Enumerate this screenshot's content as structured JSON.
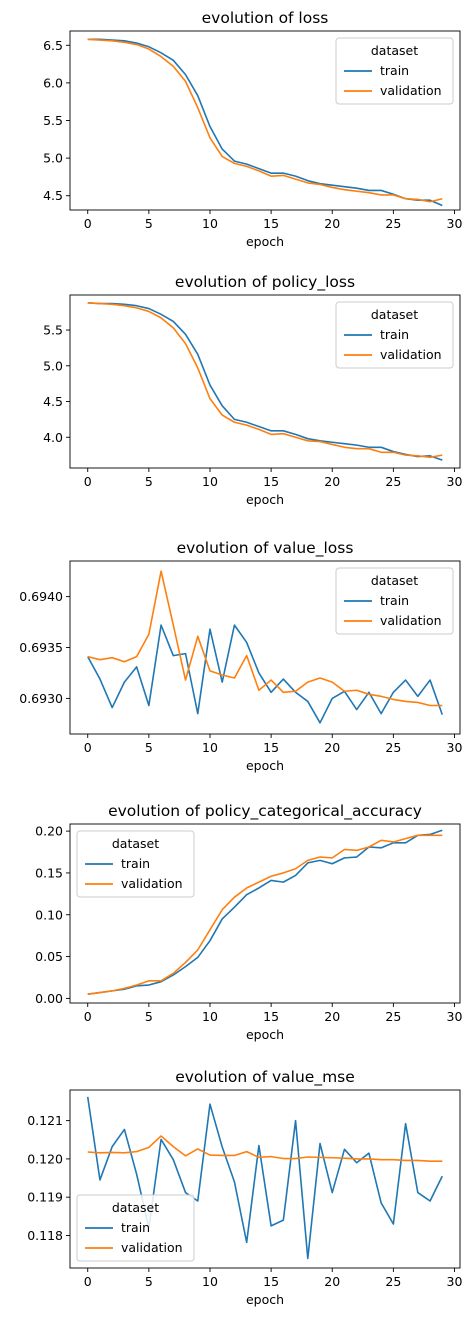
{
  "colors": {
    "train": "#1f77b4",
    "validation": "#ff7f0e"
  },
  "chart_data": [
    {
      "type": "line",
      "title": "evolution of loss",
      "xlabel": "epoch",
      "ylabel": "",
      "xlim": [
        -1.45,
        30.45
      ],
      "ylim": [
        4.31,
        6.69
      ],
      "xticks": [
        0,
        5,
        10,
        15,
        20,
        25,
        30
      ],
      "yticks": [
        4.5,
        5.0,
        5.5,
        6.0,
        6.5
      ],
      "yticklabels": [
        "4.5",
        "5.0",
        "5.5",
        "6.0",
        "6.5"
      ],
      "legend": {
        "title": "dataset",
        "position": "top-right"
      },
      "x": [
        0,
        1,
        2,
        3,
        4,
        5,
        6,
        7,
        8,
        9,
        10,
        11,
        12,
        13,
        14,
        15,
        16,
        17,
        18,
        19,
        20,
        21,
        22,
        23,
        24,
        25,
        26,
        27,
        28,
        29
      ],
      "series": [
        {
          "name": "train",
          "values": [
            6.58,
            6.58,
            6.57,
            6.56,
            6.53,
            6.48,
            6.4,
            6.3,
            6.11,
            5.83,
            5.42,
            5.12,
            4.96,
            4.92,
            4.86,
            4.8,
            4.8,
            4.76,
            4.7,
            4.66,
            4.64,
            4.62,
            4.6,
            4.57,
            4.57,
            4.52,
            4.46,
            4.44,
            4.44,
            4.37
          ]
        },
        {
          "name": "validation",
          "values": [
            6.58,
            6.57,
            6.56,
            6.54,
            6.51,
            6.45,
            6.35,
            6.22,
            6.02,
            5.67,
            5.27,
            5.02,
            4.93,
            4.89,
            4.83,
            4.76,
            4.77,
            4.72,
            4.67,
            4.65,
            4.61,
            4.58,
            4.56,
            4.54,
            4.51,
            4.51,
            4.46,
            4.45,
            4.42,
            4.46
          ]
        }
      ]
    },
    {
      "type": "line",
      "title": "evolution of policy_loss",
      "xlabel": "epoch",
      "ylabel": "",
      "xlim": [
        -1.45,
        30.45
      ],
      "ylim": [
        3.57,
        5.99
      ],
      "xticks": [
        0,
        5,
        10,
        15,
        20,
        25,
        30
      ],
      "yticks": [
        4.0,
        4.5,
        5.0,
        5.5
      ],
      "yticklabels": [
        "4.0",
        "4.5",
        "5.0",
        "5.5"
      ],
      "legend": {
        "title": "dataset",
        "position": "top-right"
      },
      "x": [
        0,
        1,
        2,
        3,
        4,
        5,
        6,
        7,
        8,
        9,
        10,
        11,
        12,
        13,
        14,
        15,
        16,
        17,
        18,
        19,
        20,
        21,
        22,
        23,
        24,
        25,
        26,
        27,
        28,
        29
      ],
      "series": [
        {
          "name": "train",
          "values": [
            5.88,
            5.87,
            5.87,
            5.86,
            5.84,
            5.8,
            5.72,
            5.62,
            5.44,
            5.16,
            4.73,
            4.44,
            4.25,
            4.21,
            4.15,
            4.09,
            4.09,
            4.04,
            3.98,
            3.95,
            3.93,
            3.91,
            3.89,
            3.86,
            3.86,
            3.8,
            3.76,
            3.73,
            3.74,
            3.68
          ]
        },
        {
          "name": "validation",
          "values": [
            5.88,
            5.87,
            5.86,
            5.84,
            5.81,
            5.76,
            5.67,
            5.53,
            5.31,
            4.97,
            4.54,
            4.31,
            4.21,
            4.17,
            4.11,
            4.04,
            4.05,
            4.0,
            3.95,
            3.94,
            3.9,
            3.86,
            3.84,
            3.84,
            3.79,
            3.79,
            3.75,
            3.74,
            3.72,
            3.75
          ]
        }
      ]
    },
    {
      "type": "line",
      "title": "evolution of value_loss",
      "xlabel": "epoch",
      "ylabel": "",
      "xlim": [
        -1.45,
        30.45
      ],
      "ylim": [
        0.69265,
        0.69435
      ],
      "xticks": [
        0,
        5,
        10,
        15,
        20,
        25,
        30
      ],
      "yticks": [
        0.693,
        0.6935,
        0.694
      ],
      "yticklabels": [
        "0.6930",
        "0.6935",
        "0.6940"
      ],
      "legend": {
        "title": "dataset",
        "position": "top-right"
      },
      "x": [
        0,
        1,
        2,
        3,
        4,
        5,
        6,
        7,
        8,
        9,
        10,
        11,
        12,
        13,
        14,
        15,
        16,
        17,
        18,
        19,
        20,
        21,
        22,
        23,
        24,
        25,
        26,
        27,
        28,
        29
      ],
      "series": [
        {
          "name": "train",
          "values": [
            0.69341,
            0.69319,
            0.69291,
            0.69316,
            0.69331,
            0.69293,
            0.69372,
            0.69342,
            0.69344,
            0.69285,
            0.69368,
            0.69316,
            0.69372,
            0.69355,
            0.69325,
            0.69306,
            0.69319,
            0.69306,
            0.69297,
            0.69276,
            0.693,
            0.69307,
            0.69289,
            0.69306,
            0.69285,
            0.69306,
            0.69318,
            0.69302,
            0.69318,
            0.69284
          ]
        },
        {
          "name": "validation",
          "values": [
            0.69341,
            0.69338,
            0.6934,
            0.69336,
            0.69341,
            0.69363,
            0.69425,
            0.69372,
            0.69318,
            0.69361,
            0.69327,
            0.69323,
            0.6932,
            0.69342,
            0.69308,
            0.69318,
            0.69306,
            0.69307,
            0.69316,
            0.6932,
            0.69316,
            0.69307,
            0.69308,
            0.69304,
            0.69302,
            0.69299,
            0.69297,
            0.69296,
            0.69293,
            0.69293
          ]
        }
      ]
    },
    {
      "type": "line",
      "title": "evolution of policy_categorical_accuracy",
      "xlabel": "epoch",
      "ylabel": "",
      "xlim": [
        -1.45,
        30.45
      ],
      "ylim": [
        -0.0055,
        0.2085
      ],
      "xticks": [
        0,
        5,
        10,
        15,
        20,
        25,
        30
      ],
      "yticks": [
        0.0,
        0.05,
        0.1,
        0.15,
        0.2
      ],
      "yticklabels": [
        "0.00",
        "0.05",
        "0.10",
        "0.15",
        "0.20"
      ],
      "legend": {
        "title": "dataset",
        "position": "top-left"
      },
      "x": [
        0,
        1,
        2,
        3,
        4,
        5,
        6,
        7,
        8,
        9,
        10,
        11,
        12,
        13,
        14,
        15,
        16,
        17,
        18,
        19,
        20,
        21,
        22,
        23,
        24,
        25,
        26,
        27,
        28,
        29
      ],
      "series": [
        {
          "name": "train",
          "values": [
            0.005,
            0.007,
            0.009,
            0.011,
            0.015,
            0.016,
            0.02,
            0.028,
            0.038,
            0.049,
            0.069,
            0.095,
            0.109,
            0.124,
            0.132,
            0.141,
            0.139,
            0.147,
            0.162,
            0.165,
            0.161,
            0.168,
            0.169,
            0.181,
            0.18,
            0.186,
            0.186,
            0.195,
            0.196,
            0.201
          ]
        },
        {
          "name": "validation",
          "values": [
            0.005,
            0.007,
            0.009,
            0.012,
            0.016,
            0.021,
            0.021,
            0.03,
            0.043,
            0.058,
            0.082,
            0.106,
            0.121,
            0.132,
            0.139,
            0.146,
            0.15,
            0.155,
            0.165,
            0.169,
            0.168,
            0.178,
            0.177,
            0.181,
            0.189,
            0.187,
            0.191,
            0.195,
            0.195,
            0.195
          ]
        }
      ]
    },
    {
      "type": "line",
      "title": "evolution of value_mse",
      "xlabel": "epoch",
      "ylabel": "",
      "xlim": [
        -1.45,
        30.45
      ],
      "ylim": [
        0.11715,
        0.1218
      ],
      "xticks": [
        0,
        5,
        10,
        15,
        20,
        25,
        30
      ],
      "yticks": [
        0.118,
        0.119,
        0.12,
        0.121
      ],
      "yticklabels": [
        "0.118",
        "0.119",
        "0.120",
        "0.121"
      ],
      "legend": {
        "title": "dataset",
        "position": "bottom-left"
      },
      "x": [
        0,
        1,
        2,
        3,
        4,
        5,
        6,
        7,
        8,
        9,
        10,
        11,
        12,
        13,
        14,
        15,
        16,
        17,
        18,
        19,
        20,
        21,
        22,
        23,
        24,
        25,
        26,
        27,
        28,
        29
      ],
      "series": [
        {
          "name": "train",
          "values": [
            0.12162,
            0.11945,
            0.12032,
            0.12077,
            0.1196,
            0.1182,
            0.12051,
            0.11998,
            0.11912,
            0.1189,
            0.12143,
            0.12031,
            0.1194,
            0.11782,
            0.12035,
            0.11825,
            0.1184,
            0.121,
            0.1174,
            0.1204,
            0.11912,
            0.12025,
            0.1199,
            0.12015,
            0.11885,
            0.1183,
            0.12092,
            0.11912,
            0.1189,
            0.11955
          ]
        },
        {
          "name": "validation",
          "values": [
            0.12018,
            0.12016,
            0.12017,
            0.12016,
            0.12019,
            0.1203,
            0.1206,
            0.12032,
            0.12008,
            0.12026,
            0.1201,
            0.12009,
            0.12009,
            0.12019,
            0.12004,
            0.12006,
            0.12001,
            0.12001,
            0.12005,
            0.12004,
            0.12003,
            0.12002,
            0.12,
            0.12,
            0.11998,
            0.11998,
            0.11996,
            0.11996,
            0.11994,
            0.11994
          ]
        }
      ]
    }
  ]
}
